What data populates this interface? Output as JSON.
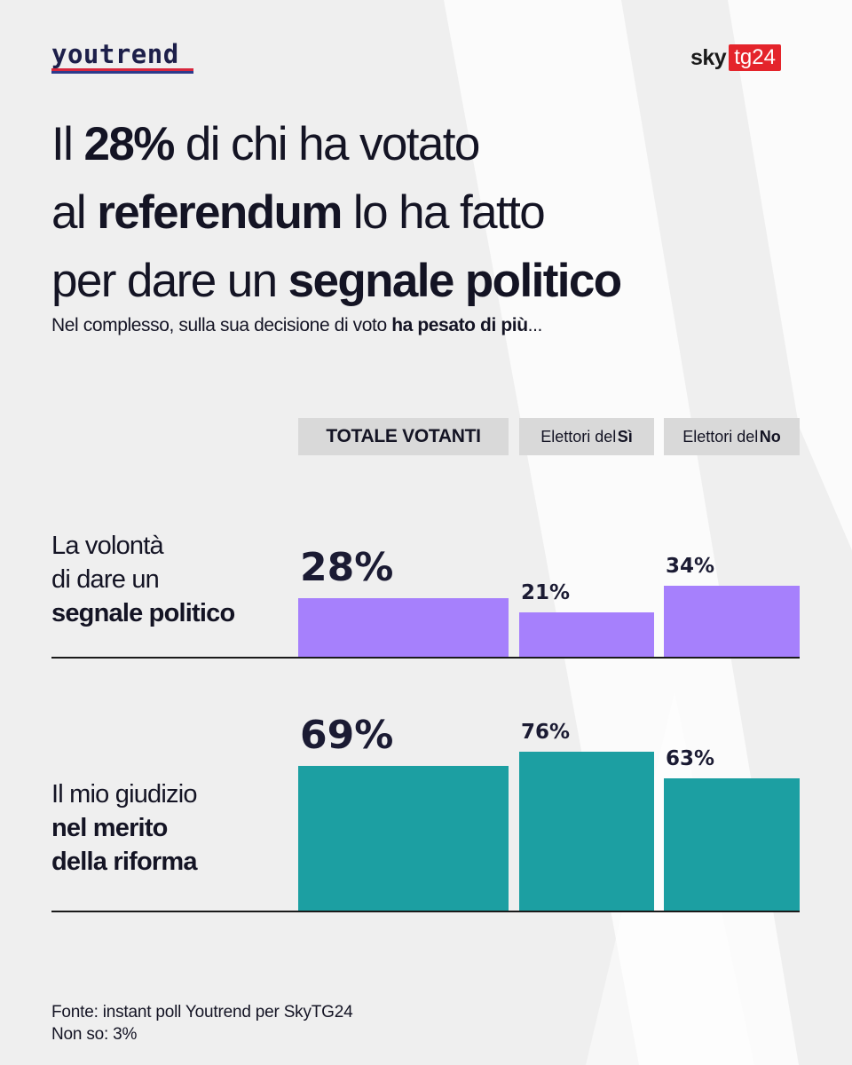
{
  "brand": {
    "left": "youtrend",
    "right_sky": "sky",
    "right_tg": "tg24"
  },
  "headline": {
    "line1": [
      "Il ",
      "28%",
      " di chi ha votato"
    ],
    "line2": [
      "al ",
      "referendum",
      " lo ha fatto"
    ],
    "line3": [
      "per dare un ",
      "segnale politico",
      ""
    ]
  },
  "subtitle": {
    "text": "Nel complesso, sulla sua decisione di voto ",
    "bold": "ha pesato di più",
    "tail": "..."
  },
  "footer": {
    "source": "Fonte: instant poll Youtrend per SkyTG24",
    "note": "Non so: 3%"
  },
  "colors": {
    "purple": "#a680fc",
    "teal": "#1c9fa2",
    "header_bg": "#d9d9d9"
  },
  "chart_data": {
    "type": "bar",
    "title": "Il 28% di chi ha votato al referendum lo ha fatto per dare un segnale politico",
    "columns": [
      {
        "label": "TOTALE VOTANTI",
        "bold": ""
      },
      {
        "label": "Elettori del ",
        "bold": "Sì"
      },
      {
        "label": "Elettori del ",
        "bold": "No"
      }
    ],
    "series": [
      {
        "name": "La volontà di dare un segnale politico",
        "label_lines": [
          {
            "text": "La volontà",
            "bold": false
          },
          {
            "text": "di dare un",
            "bold": false
          },
          {
            "text": "segnale politico",
            "bold": true
          }
        ],
        "values": [
          28,
          21,
          34
        ],
        "value_labels": [
          "28%",
          "21%",
          "34%"
        ],
        "color": "#a680fc"
      },
      {
        "name": "Il mio giudizio nel merito della riforma",
        "label_lines": [
          {
            "text": "Il mio giudizio",
            "bold": false
          },
          {
            "text": "nel merito",
            "bold": true
          },
          {
            "text": "della riforma",
            "bold": true
          }
        ],
        "values": [
          69,
          76,
          63
        ],
        "value_labels": [
          "69%",
          "76%",
          "63%"
        ],
        "color": "#1c9fa2"
      }
    ],
    "unit": "%"
  }
}
